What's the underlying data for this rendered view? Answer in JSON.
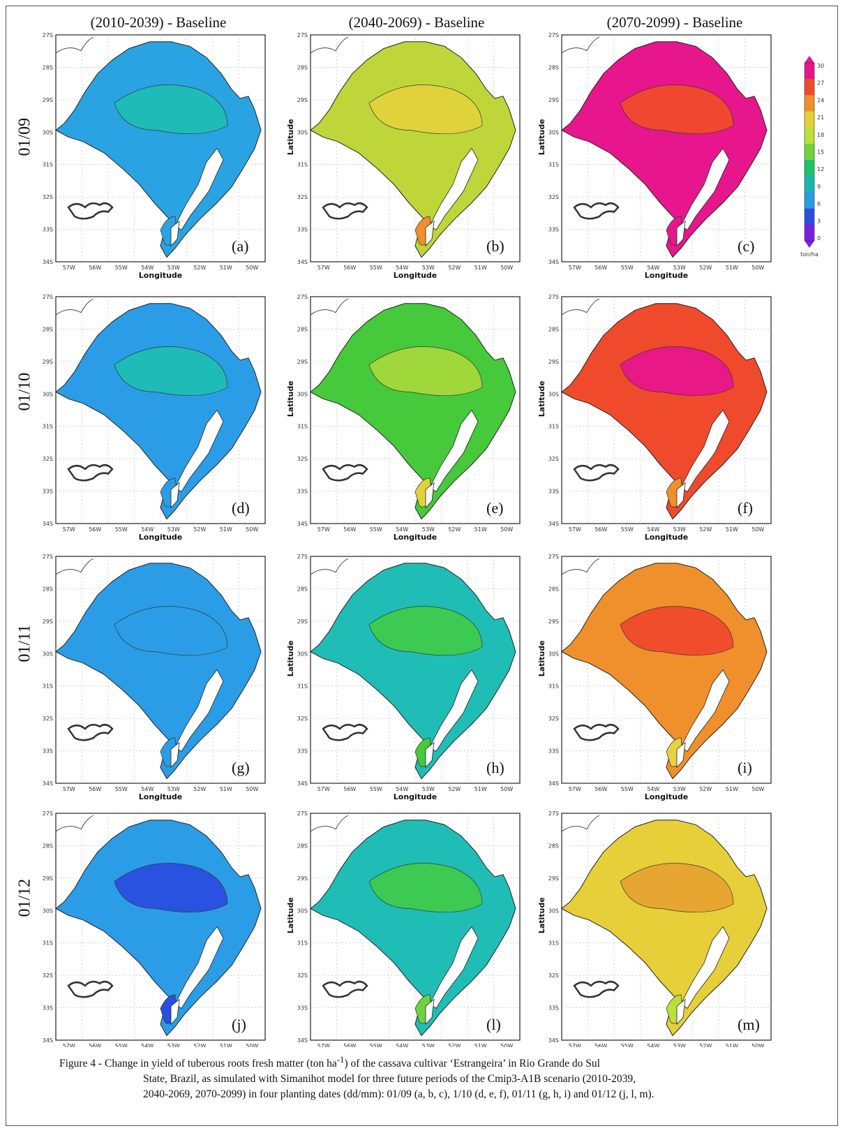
{
  "figure": {
    "column_titles": [
      "(2010-2039) - Baseline",
      "(2040-2069) - Baseline",
      "(2070-2099) - Baseline"
    ],
    "row_labels": [
      "01/09",
      "01/10",
      "01/11",
      "01/12"
    ],
    "panel_letters": [
      [
        "(a)",
        "(b)",
        "(c)"
      ],
      [
        "(d)",
        "(e)",
        "(f)"
      ],
      [
        "(g)",
        "(h)",
        "(i)"
      ],
      [
        "(j)",
        "(l)",
        "(m)"
      ]
    ],
    "x_ticks": [
      "57W",
      "56W",
      "55W",
      "54W",
      "53W",
      "52W",
      "51W",
      "50W"
    ],
    "y_ticks": [
      "27S",
      "28S",
      "29S",
      "30S",
      "31S",
      "32S",
      "33S",
      "34S"
    ],
    "x_label": "Longitude",
    "y_label": "Latitude",
    "colorbar": {
      "ticks": [
        "30",
        "27",
        "24",
        "21",
        "18",
        "15",
        "12",
        "9",
        "6",
        "3",
        "0"
      ],
      "unit": "ton/ha",
      "colors": [
        "#e8168c",
        "#f04a2c",
        "#f0902c",
        "#e6cf38",
        "#bcdf3a",
        "#6fd23c",
        "#1fc26a",
        "#19b7b3",
        "#2a9ce6",
        "#2a4fe0",
        "#7a1fe0"
      ]
    },
    "panel_colors": [
      {
        "base": "#2aa3e2",
        "zones": [
          "#1fbdb5",
          "#2aa3e2"
        ]
      },
      {
        "base": "#bfd63a",
        "zones": [
          "#e2d23a",
          "#f0902c"
        ]
      },
      {
        "base": "#e8168c",
        "zones": [
          "#f04a2c",
          "#e8168c"
        ]
      },
      {
        "base": "#2b9de6",
        "zones": [
          "#1fbdb5",
          "#2b9de6"
        ]
      },
      {
        "base": "#46c93b",
        "zones": [
          "#a5d83a",
          "#e2d23a"
        ]
      },
      {
        "base": "#f04a2c",
        "zones": [
          "#e8168c",
          "#f0902c"
        ]
      },
      {
        "base": "#2b9de6",
        "zones": [
          "#2b9de6",
          "#2b9de6"
        ]
      },
      {
        "base": "#1fbdb5",
        "zones": [
          "#3fcb4d",
          "#46c93b"
        ]
      },
      {
        "base": "#f0902c",
        "zones": [
          "#f04a2c",
          "#e8d240"
        ]
      },
      {
        "base": "#2b9de6",
        "zones": [
          "#2a4fe0",
          "#2a4fe0"
        ]
      },
      {
        "base": "#1fbdb5",
        "zones": [
          "#3fcb4d",
          "#6fd23c"
        ]
      },
      {
        "base": "#e6cf38",
        "zones": [
          "#e8a432",
          "#bcdf3a"
        ]
      }
    ]
  },
  "caption": {
    "line1_pre": "Figure 4 - Change in yield of tuberous roots fresh matter (ton ha",
    "sup": "-1",
    "line1_post": ") of the cassava cultivar ‘Estrangeira’ in Rio Grande do Sul",
    "line2": "State, Brazil, as simulated with Simanihot model for three future periods of the Cmip3-A1B scenario (2010-2039,",
    "line3": "2040-2069, 2070-2099) in four planting dates (dd/mm): 01/09 (a, b, c), 1/10 (d, e, f), 01/11 (g, h, i) and 01/12 (j, l, m)."
  }
}
